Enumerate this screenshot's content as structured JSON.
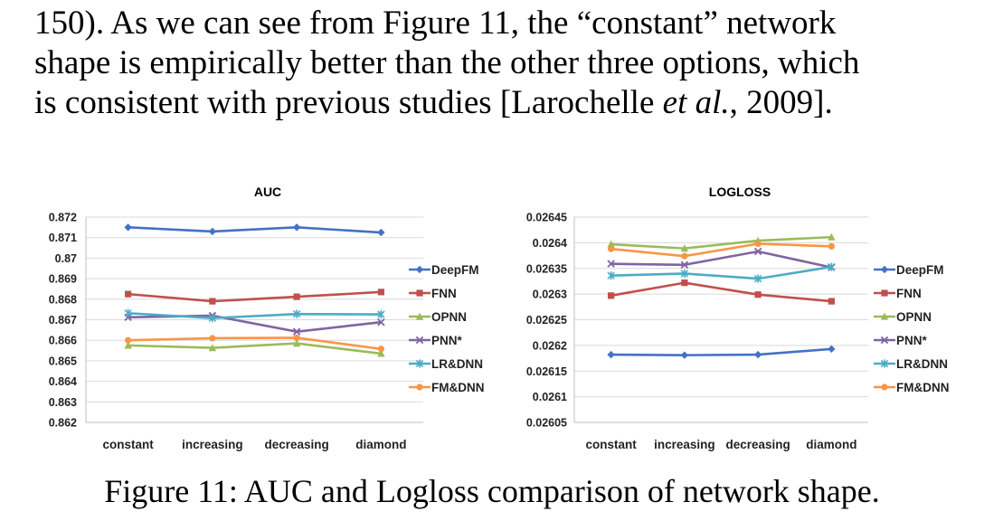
{
  "paragraph": {
    "line1": "150).  As we can see from Figure 11, the “constant” network",
    "line2": "shape is empirically better than the other three options, which",
    "line3_a": "is consistent with previous studies [Larochelle ",
    "line3_b": "et al.",
    "line3_c": ", 2009]."
  },
  "caption": {
    "label": "Figure 11:",
    "text": " AUC and Logloss comparison of network shape."
  },
  "chart_data": [
    {
      "type": "line",
      "title": "AUC",
      "categories": [
        "constant",
        "increasing",
        "decreasing",
        "diamond"
      ],
      "ylim": [
        0.862,
        0.872
      ],
      "yticks": [
        "0.872",
        "0.871",
        "0.87",
        "0.869",
        "0.868",
        "0.867",
        "0.866",
        "0.865",
        "0.864",
        "0.863",
        "0.862"
      ],
      "grid": true,
      "legend": "right",
      "series": [
        {
          "name": "DeepFM",
          "color": "#4472C4",
          "marker": "diamond",
          "values": [
            0.8715,
            0.8713,
            0.8715,
            0.87125
          ]
        },
        {
          "name": "FNN",
          "color": "#C0504D",
          "marker": "square",
          "values": [
            0.86825,
            0.8679,
            0.86812,
            0.86835
          ]
        },
        {
          "name": "OPNN",
          "color": "#9BBB59",
          "marker": "triangle",
          "values": [
            0.86575,
            0.86563,
            0.86585,
            0.86535
          ]
        },
        {
          "name": "PNN*",
          "color": "#8064A2",
          "marker": "x",
          "values": [
            0.86712,
            0.8672,
            0.86642,
            0.86688
          ]
        },
        {
          "name": "LR&DNN",
          "color": "#4BACC6",
          "marker": "star",
          "values": [
            0.86732,
            0.86708,
            0.86728,
            0.86726
          ]
        },
        {
          "name": "FM&DNN",
          "color": "#F79646",
          "marker": "circle",
          "values": [
            0.866,
            0.8661,
            0.86612,
            0.86558
          ]
        }
      ]
    },
    {
      "type": "line",
      "title": "LOGLOSS",
      "categories": [
        "constant",
        "increasing",
        "decreasing",
        "diamond"
      ],
      "ylim": [
        0.02605,
        0.02645
      ],
      "yticks": [
        "0.02645",
        "0.0264",
        "0.02635",
        "0.0263",
        "0.02625",
        "0.0262",
        "0.02615",
        "0.0261",
        "0.02605"
      ],
      "grid": true,
      "legend": "right",
      "series": [
        {
          "name": "DeepFM",
          "color": "#4472C4",
          "marker": "diamond",
          "values": [
            0.026182,
            0.026181,
            0.026182,
            0.026193
          ]
        },
        {
          "name": "FNN",
          "color": "#C0504D",
          "marker": "square",
          "values": [
            0.026297,
            0.026322,
            0.026299,
            0.026286
          ]
        },
        {
          "name": "OPNN",
          "color": "#9BBB59",
          "marker": "triangle",
          "values": [
            0.026397,
            0.026389,
            0.026404,
            0.026411
          ]
        },
        {
          "name": "PNN*",
          "color": "#8064A2",
          "marker": "x",
          "values": [
            0.026359,
            0.026357,
            0.026383,
            0.026352
          ]
        },
        {
          "name": "LR&DNN",
          "color": "#4BACC6",
          "marker": "star",
          "values": [
            0.026336,
            0.02634,
            0.02633,
            0.026353
          ]
        },
        {
          "name": "FM&DNN",
          "color": "#F79646",
          "marker": "circle",
          "values": [
            0.026388,
            0.026374,
            0.026398,
            0.026393
          ]
        }
      ]
    }
  ]
}
